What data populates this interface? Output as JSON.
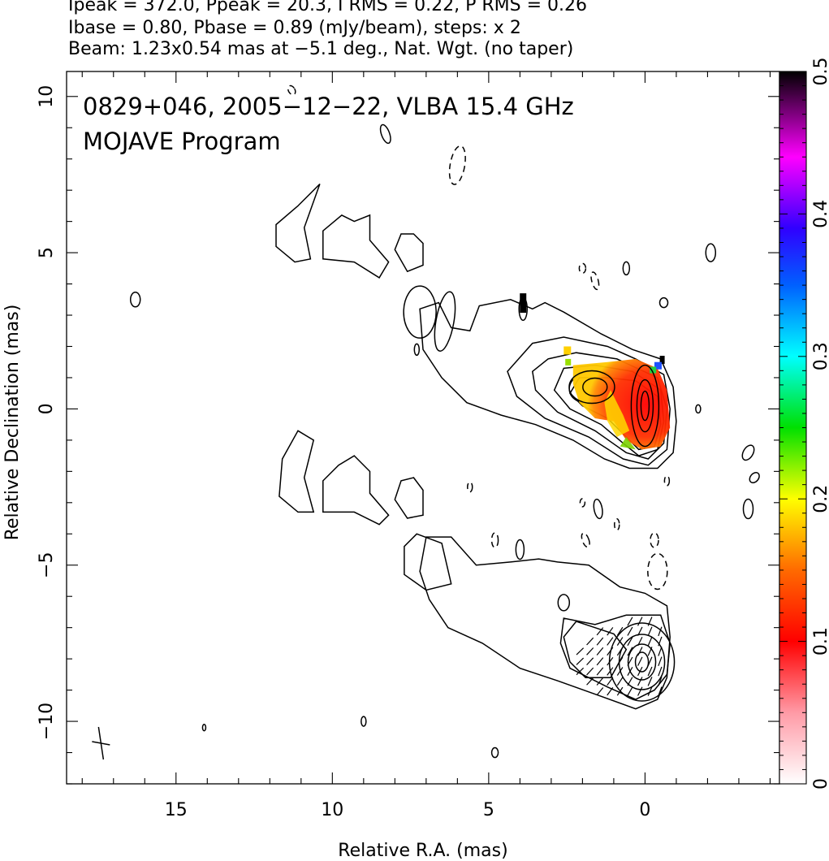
{
  "header": {
    "line1": "Ipeak = 372.0, Ppeak = 20.3, I RMS = 0.22, P RMS = 0.26",
    "line2": "Ibase = 0.80, Pbase = 0.89 (mJy/beam), steps: x 2",
    "line3": "Beam: 1.23x0.54 mas at −5.1 deg., Nat. Wgt. (no taper)"
  },
  "chart_data": {
    "type": "contour",
    "title_line1": "0829+046, 2005−12−22, VLBA 15.4 GHz",
    "title_line2": "MOJAVE Program",
    "xlabel": "Relative R.A. (mas)",
    "ylabel": "Relative Declination (mas)",
    "xlim": [
      18.5,
      -4.3
    ],
    "ylim": [
      -12,
      10.8
    ],
    "xticks": [
      15,
      10,
      5,
      0
    ],
    "yticks": [
      10,
      5,
      0,
      -5,
      -10
    ],
    "colorbar": {
      "min": 0,
      "max": 0.5,
      "ticks": [
        0,
        0.1,
        0.2,
        0.3,
        0.4,
        0.5
      ],
      "tick_labels": [
        "0",
        "0.1",
        "0.2",
        "0.3",
        "0.4",
        "0.5"
      ]
    },
    "stats": {
      "Ipeak": 372.0,
      "Ppeak": 20.3,
      "I_RMS": 0.22,
      "P_RMS": 0.26,
      "Ibase": 0.8,
      "Pbase": 0.89,
      "units": "mJy/beam",
      "steps": "x 2"
    },
    "beam": {
      "major_mas": 1.23,
      "minor_mas": 0.54,
      "pa_deg": -5.1
    },
    "core": {
      "ra": 0,
      "dec": 0
    },
    "panels": [
      {
        "name": "top",
        "offset_dec": 0,
        "contours": "total intensity",
        "overlay": "fractional polarization color"
      },
      {
        "name": "bottom",
        "offset_dec": -8,
        "contours": "polarized intensity",
        "overlay": "EVPA ticks"
      }
    ]
  }
}
